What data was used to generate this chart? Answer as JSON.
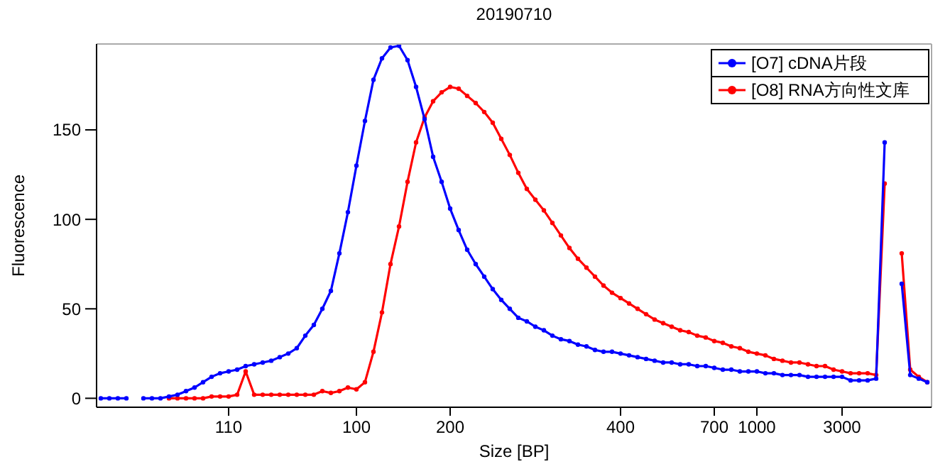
{
  "chart_data": {
    "type": "line",
    "title": "20190710",
    "xlabel": "Size [BP]",
    "ylabel": "Fluorescence",
    "categories": [
      null,
      null,
      null,
      null,
      null,
      null,
      null,
      null,
      null,
      null,
      null,
      null,
      null,
      null,
      null,
      "110",
      null,
      null,
      null,
      null,
      null,
      null,
      null,
      null,
      null,
      null,
      null,
      null,
      null,
      null,
      "100",
      null,
      null,
      null,
      null,
      null,
      null,
      null,
      null,
      null,
      null,
      "200",
      null,
      null,
      null,
      null,
      null,
      null,
      null,
      null,
      null,
      null,
      null,
      null,
      null,
      null,
      null,
      null,
      null,
      null,
      null,
      "400",
      null,
      null,
      null,
      null,
      null,
      null,
      null,
      null,
      null,
      null,
      "700",
      null,
      null,
      null,
      null,
      "1000",
      null,
      null,
      null,
      null,
      null,
      null,
      null,
      null,
      null,
      "3000",
      null,
      null,
      null,
      null,
      null,
      null,
      null,
      null,
      null,
      null
    ],
    "ylim": [
      -5,
      198
    ],
    "yticks": [
      0,
      50,
      100,
      150
    ],
    "grid": false,
    "legend": "top right",
    "marker": "circle",
    "line_style": "solid",
    "series": [
      {
        "name": "[O7] cDNA片段",
        "color": "#0000ff",
        "values": [
          0,
          0,
          0,
          0,
          null,
          0,
          0,
          0,
          1,
          2,
          4,
          6,
          9,
          12,
          14,
          15,
          16,
          18,
          19,
          20,
          21,
          23,
          25,
          28,
          35,
          41,
          50,
          60,
          81,
          104,
          130,
          155,
          178,
          190,
          196,
          197,
          189,
          174,
          156,
          135,
          121,
          106,
          94,
          83,
          75,
          68,
          61,
          55,
          50,
          45,
          43,
          40,
          38,
          35,
          33,
          32,
          30,
          29,
          27,
          26,
          26,
          25,
          24,
          23,
          22,
          21,
          20,
          20,
          19,
          19,
          18,
          18,
          17,
          16,
          16,
          15,
          15,
          15,
          14,
          14,
          13,
          13,
          13,
          12,
          12,
          12,
          12,
          12,
          10,
          10,
          10,
          11,
          143,
          null,
          64,
          13,
          11,
          9
        ]
      },
      {
        "name": "[O8] RNA方向性文库",
        "color": "#ff0000",
        "values": [
          null,
          null,
          null,
          null,
          null,
          null,
          null,
          null,
          0,
          0,
          0,
          0,
          0,
          1,
          1,
          1,
          2,
          15,
          2,
          2,
          2,
          2,
          2,
          2,
          2,
          2,
          4,
          3,
          4,
          6,
          5,
          9,
          26,
          48,
          75,
          96,
          121,
          143,
          157,
          166,
          171,
          174,
          173,
          169,
          165,
          160,
          154,
          145,
          136,
          126,
          117,
          111,
          105,
          98,
          91,
          84,
          78,
          73,
          68,
          63,
          59,
          56,
          53,
          50,
          47,
          44,
          42,
          40,
          38,
          37,
          35,
          34,
          32,
          31,
          29,
          28,
          26,
          25,
          24,
          22,
          21,
          20,
          20,
          19,
          18,
          18,
          16,
          15,
          14,
          14,
          14,
          13,
          120,
          null,
          81,
          16,
          12,
          9
        ]
      }
    ]
  }
}
